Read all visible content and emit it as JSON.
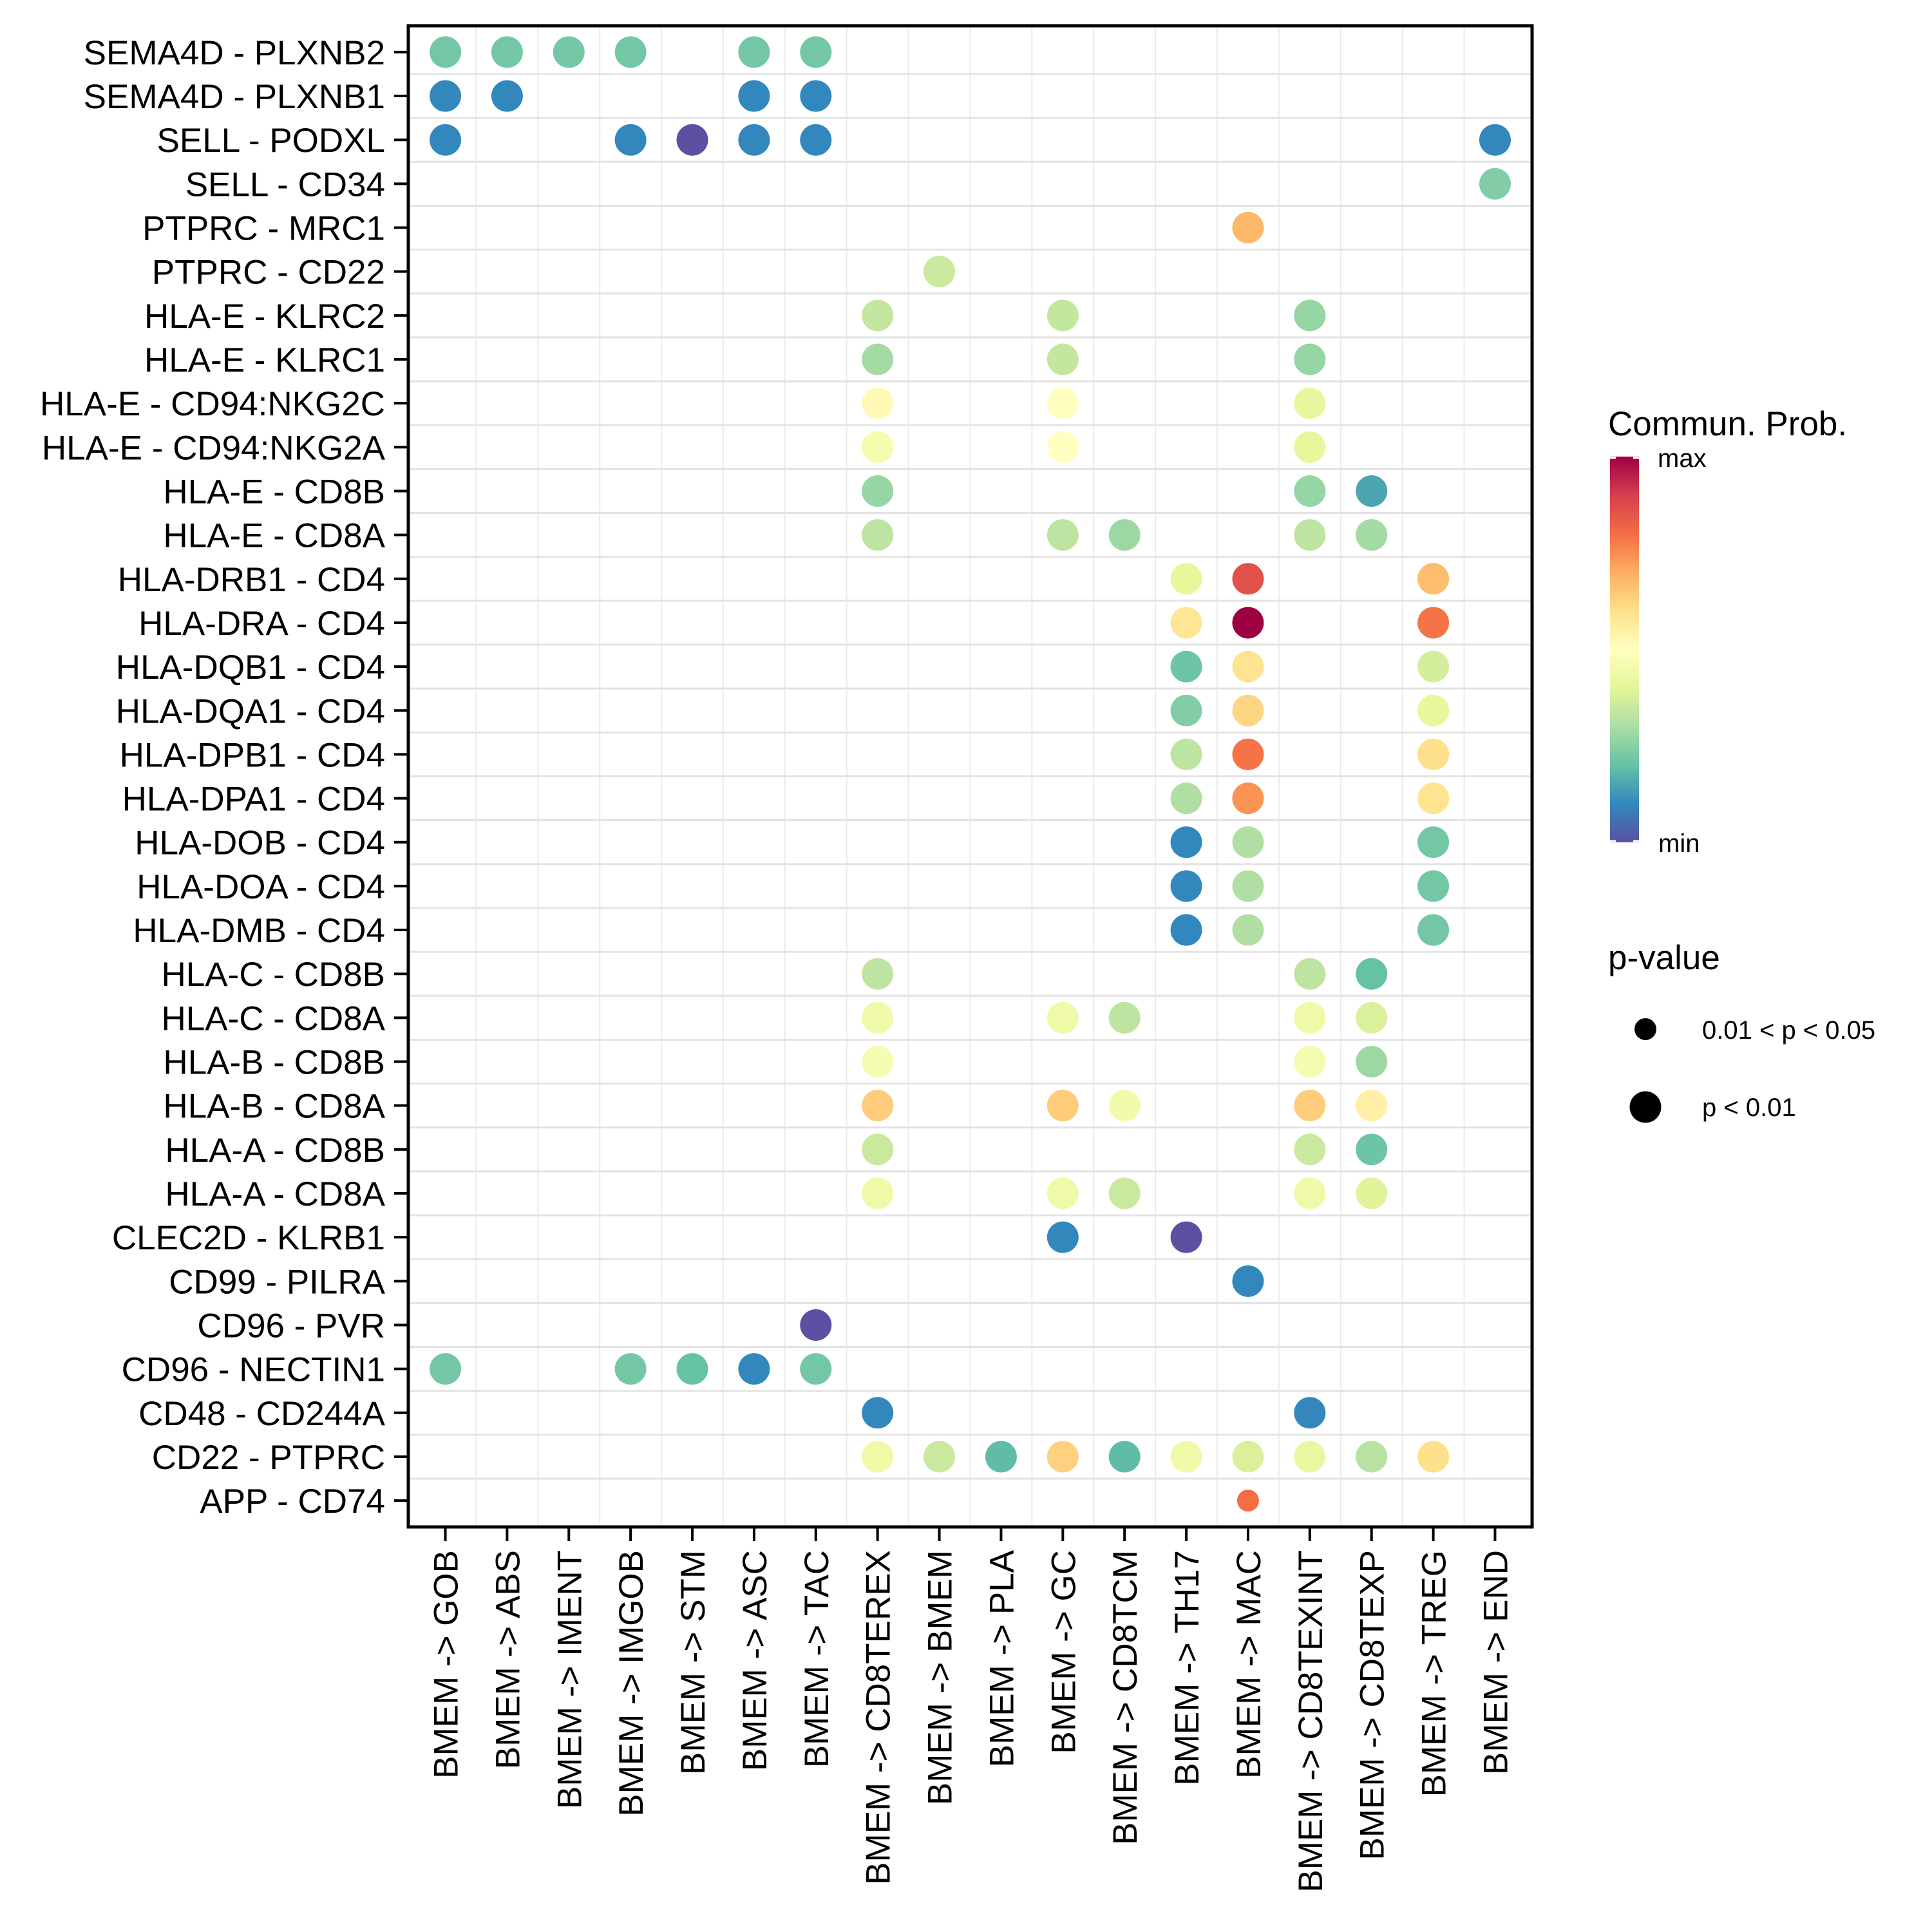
{
  "chart_data": {
    "type": "scatter",
    "subtype": "dot-matrix",
    "title": "",
    "xlabel": "",
    "ylabel": "",
    "grid": true,
    "categories_x": [
      "BMEM -> GOB",
      "BMEM -> ABS",
      "BMEM -> IMENT",
      "BMEM -> IMGOB",
      "BMEM -> STM",
      "BMEM -> ASC",
      "BMEM -> TAC",
      "BMEM -> CD8TEREX",
      "BMEM -> BMEM",
      "BMEM -> PLA",
      "BMEM -> GC",
      "BMEM -> CD8TCM",
      "BMEM -> TH17",
      "BMEM -> MAC",
      "BMEM -> CD8TEXINT",
      "BMEM -> CD8TEXP",
      "BMEM -> TREG",
      "BMEM -> END"
    ],
    "categories_y": [
      "SEMA4D - PLXNB2",
      "SEMA4D - PLXNB1",
      "SELL - PODXL",
      "SELL - CD34",
      "PTPRC - MRC1",
      "PTPRC - CD22",
      "HLA-E - KLRC2",
      "HLA-E - KLRC1",
      "HLA-E - CD94:NKG2C",
      "HLA-E - CD94:NKG2A",
      "HLA-E - CD8B",
      "HLA-E - CD8A",
      "HLA-DRB1 - CD4",
      "HLA-DRA - CD4",
      "HLA-DQB1 - CD4",
      "HLA-DQA1 - CD4",
      "HLA-DPB1 - CD4",
      "HLA-DPA1 - CD4",
      "HLA-DOB - CD4",
      "HLA-DOA - CD4",
      "HLA-DMB - CD4",
      "HLA-C - CD8B",
      "HLA-C - CD8A",
      "HLA-B - CD8B",
      "HLA-B - CD8A",
      "HLA-A - CD8B",
      "HLA-A - CD8A",
      "CLEC2D - KLRB1",
      "CD99 - PILRA",
      "CD96 - PVR",
      "CD96 - NECTIN1",
      "CD48 - CD244A",
      "CD22 - PTPRC",
      "APP - CD74"
    ],
    "value_note": "prob = relative communication probability on the color scale (0 = min, 1 = max); pval = p-value bin",
    "points": [
      {
        "y": "SEMA4D - PLXNB2",
        "x": "BMEM -> GOB",
        "prob": 0.22,
        "pval": "p < 0.01"
      },
      {
        "y": "SEMA4D - PLXNB2",
        "x": "BMEM -> ABS",
        "prob": 0.22,
        "pval": "p < 0.01"
      },
      {
        "y": "SEMA4D - PLXNB2",
        "x": "BMEM -> IMENT",
        "prob": 0.22,
        "pval": "p < 0.01"
      },
      {
        "y": "SEMA4D - PLXNB2",
        "x": "BMEM -> IMGOB",
        "prob": 0.22,
        "pval": "p < 0.01"
      },
      {
        "y": "SEMA4D - PLXNB2",
        "x": "BMEM -> ASC",
        "prob": 0.22,
        "pval": "p < 0.01"
      },
      {
        "y": "SEMA4D - PLXNB2",
        "x": "BMEM -> TAC",
        "prob": 0.22,
        "pval": "p < 0.01"
      },
      {
        "y": "SEMA4D - PLXNB1",
        "x": "BMEM -> GOB",
        "prob": 0.1,
        "pval": "p < 0.01"
      },
      {
        "y": "SEMA4D - PLXNB1",
        "x": "BMEM -> ABS",
        "prob": 0.1,
        "pval": "p < 0.01"
      },
      {
        "y": "SEMA4D - PLXNB1",
        "x": "BMEM -> ASC",
        "prob": 0.1,
        "pval": "p < 0.01"
      },
      {
        "y": "SEMA4D - PLXNB1",
        "x": "BMEM -> TAC",
        "prob": 0.1,
        "pval": "p < 0.01"
      },
      {
        "y": "SELL - PODXL",
        "x": "BMEM -> GOB",
        "prob": 0.1,
        "pval": "p < 0.01"
      },
      {
        "y": "SELL - PODXL",
        "x": "BMEM -> IMGOB",
        "prob": 0.1,
        "pval": "p < 0.01"
      },
      {
        "y": "SELL - PODXL",
        "x": "BMEM -> STM",
        "prob": 0.0,
        "pval": "p < 0.01"
      },
      {
        "y": "SELL - PODXL",
        "x": "BMEM -> ASC",
        "prob": 0.1,
        "pval": "p < 0.01"
      },
      {
        "y": "SELL - PODXL",
        "x": "BMEM -> TAC",
        "prob": 0.1,
        "pval": "p < 0.01"
      },
      {
        "y": "SELL - PODXL",
        "x": "BMEM -> END",
        "prob": 0.1,
        "pval": "p < 0.01"
      },
      {
        "y": "SELL - CD34",
        "x": "BMEM -> END",
        "prob": 0.24,
        "pval": "p < 0.01"
      },
      {
        "y": "PTPRC - MRC1",
        "x": "BMEM -> MAC",
        "prob": 0.68,
        "pval": "p < 0.01"
      },
      {
        "y": "PTPRC - CD22",
        "x": "BMEM -> BMEM",
        "prob": 0.35,
        "pval": "p < 0.01"
      },
      {
        "y": "HLA-E - KLRC2",
        "x": "BMEM -> CD8TEREX",
        "prob": 0.34,
        "pval": "p < 0.01"
      },
      {
        "y": "HLA-E - KLRC2",
        "x": "BMEM -> GC",
        "prob": 0.34,
        "pval": "p < 0.01"
      },
      {
        "y": "HLA-E - KLRC2",
        "x": "BMEM -> CD8TEXINT",
        "prob": 0.27,
        "pval": "p < 0.01"
      },
      {
        "y": "HLA-E - KLRC1",
        "x": "BMEM -> CD8TEREX",
        "prob": 0.29,
        "pval": "p < 0.01"
      },
      {
        "y": "HLA-E - KLRC1",
        "x": "BMEM -> GC",
        "prob": 0.34,
        "pval": "p < 0.01"
      },
      {
        "y": "HLA-E - KLRC1",
        "x": "BMEM -> CD8TEXINT",
        "prob": 0.27,
        "pval": "p < 0.01"
      },
      {
        "y": "HLA-E - CD94:NKG2C",
        "x": "BMEM -> CD8TEREX",
        "prob": 0.52,
        "pval": "p < 0.01"
      },
      {
        "y": "HLA-E - CD94:NKG2C",
        "x": "BMEM -> GC",
        "prob": 0.5,
        "pval": "p < 0.01"
      },
      {
        "y": "HLA-E - CD94:NKG2C",
        "x": "BMEM -> CD8TEXINT",
        "prob": 0.41,
        "pval": "p < 0.01"
      },
      {
        "y": "HLA-E - CD94:NKG2A",
        "x": "BMEM -> CD8TEREX",
        "prob": 0.46,
        "pval": "p < 0.01"
      },
      {
        "y": "HLA-E - CD94:NKG2A",
        "x": "BMEM -> GC",
        "prob": 0.5,
        "pval": "p < 0.01"
      },
      {
        "y": "HLA-E - CD94:NKG2A",
        "x": "BMEM -> CD8TEXINT",
        "prob": 0.41,
        "pval": "p < 0.01"
      },
      {
        "y": "HLA-E - CD8B",
        "x": "BMEM -> CD8TEREX",
        "prob": 0.27,
        "pval": "p < 0.01"
      },
      {
        "y": "HLA-E - CD8B",
        "x": "BMEM -> CD8TEXINT",
        "prob": 0.27,
        "pval": "p < 0.01"
      },
      {
        "y": "HLA-E - CD8B",
        "x": "BMEM -> CD8TEXP",
        "prob": 0.15,
        "pval": "p < 0.01"
      },
      {
        "y": "HLA-E - CD8A",
        "x": "BMEM -> CD8TEREX",
        "prob": 0.33,
        "pval": "p < 0.01"
      },
      {
        "y": "HLA-E - CD8A",
        "x": "BMEM -> GC",
        "prob": 0.33,
        "pval": "p < 0.01"
      },
      {
        "y": "HLA-E - CD8A",
        "x": "BMEM -> CD8TCM",
        "prob": 0.28,
        "pval": "p < 0.01"
      },
      {
        "y": "HLA-E - CD8A",
        "x": "BMEM -> CD8TEXINT",
        "prob": 0.33,
        "pval": "p < 0.01"
      },
      {
        "y": "HLA-E - CD8A",
        "x": "BMEM -> CD8TEXP",
        "prob": 0.29,
        "pval": "p < 0.01"
      },
      {
        "y": "HLA-DRB1 - CD4",
        "x": "BMEM -> TH17",
        "prob": 0.41,
        "pval": "p < 0.01"
      },
      {
        "y": "HLA-DRB1 - CD4",
        "x": "BMEM -> MAC",
        "prob": 0.86,
        "pval": "p < 0.01"
      },
      {
        "y": "HLA-DRB1 - CD4",
        "x": "BMEM -> TREG",
        "prob": 0.67,
        "pval": "p < 0.01"
      },
      {
        "y": "HLA-DRA - CD4",
        "x": "BMEM -> TH17",
        "prob": 0.58,
        "pval": "p < 0.01"
      },
      {
        "y": "HLA-DRA - CD4",
        "x": "BMEM -> MAC",
        "prob": 1.0,
        "pval": "p < 0.01"
      },
      {
        "y": "HLA-DRA - CD4",
        "x": "BMEM -> TREG",
        "prob": 0.79,
        "pval": "p < 0.01"
      },
      {
        "y": "HLA-DQB1 - CD4",
        "x": "BMEM -> TH17",
        "prob": 0.21,
        "pval": "p < 0.01"
      },
      {
        "y": "HLA-DQB1 - CD4",
        "x": "BMEM -> MAC",
        "prob": 0.59,
        "pval": "p < 0.01"
      },
      {
        "y": "HLA-DQB1 - CD4",
        "x": "BMEM -> TREG",
        "prob": 0.37,
        "pval": "p < 0.01"
      },
      {
        "y": "HLA-DQA1 - CD4",
        "x": "BMEM -> TH17",
        "prob": 0.24,
        "pval": "p < 0.01"
      },
      {
        "y": "HLA-DQA1 - CD4",
        "x": "BMEM -> MAC",
        "prob": 0.62,
        "pval": "p < 0.01"
      },
      {
        "y": "HLA-DQA1 - CD4",
        "x": "BMEM -> TREG",
        "prob": 0.41,
        "pval": "p < 0.01"
      },
      {
        "y": "HLA-DPB1 - CD4",
        "x": "BMEM -> TH17",
        "prob": 0.33,
        "pval": "p < 0.01"
      },
      {
        "y": "HLA-DPB1 - CD4",
        "x": "BMEM -> MAC",
        "prob": 0.79,
        "pval": "p < 0.01"
      },
      {
        "y": "HLA-DPB1 - CD4",
        "x": "BMEM -> TREG",
        "prob": 0.6,
        "pval": "p < 0.01"
      },
      {
        "y": "HLA-DPA1 - CD4",
        "x": "BMEM -> TH17",
        "prob": 0.31,
        "pval": "p < 0.01"
      },
      {
        "y": "HLA-DPA1 - CD4",
        "x": "BMEM -> MAC",
        "prob": 0.74,
        "pval": "p < 0.01"
      },
      {
        "y": "HLA-DPA1 - CD4",
        "x": "BMEM -> TREG",
        "prob": 0.59,
        "pval": "p < 0.01"
      },
      {
        "y": "HLA-DOB - CD4",
        "x": "BMEM -> TH17",
        "prob": 0.1,
        "pval": "p < 0.01"
      },
      {
        "y": "HLA-DOB - CD4",
        "x": "BMEM -> MAC",
        "prob": 0.31,
        "pval": "p < 0.01"
      },
      {
        "y": "HLA-DOB - CD4",
        "x": "BMEM -> TREG",
        "prob": 0.22,
        "pval": "p < 0.01"
      },
      {
        "y": "HLA-DOA - CD4",
        "x": "BMEM -> TH17",
        "prob": 0.1,
        "pval": "p < 0.01"
      },
      {
        "y": "HLA-DOA - CD4",
        "x": "BMEM -> MAC",
        "prob": 0.31,
        "pval": "p < 0.01"
      },
      {
        "y": "HLA-DOA - CD4",
        "x": "BMEM -> TREG",
        "prob": 0.22,
        "pval": "p < 0.01"
      },
      {
        "y": "HLA-DMB - CD4",
        "x": "BMEM -> TH17",
        "prob": 0.1,
        "pval": "p < 0.01"
      },
      {
        "y": "HLA-DMB - CD4",
        "x": "BMEM -> MAC",
        "prob": 0.31,
        "pval": "p < 0.01"
      },
      {
        "y": "HLA-DMB - CD4",
        "x": "BMEM -> TREG",
        "prob": 0.22,
        "pval": "p < 0.01"
      },
      {
        "y": "HLA-C - CD8B",
        "x": "BMEM -> CD8TEREX",
        "prob": 0.33,
        "pval": "p < 0.01"
      },
      {
        "y": "HLA-C - CD8B",
        "x": "BMEM -> CD8TEXINT",
        "prob": 0.33,
        "pval": "p < 0.01"
      },
      {
        "y": "HLA-C - CD8B",
        "x": "BMEM -> CD8TEXP",
        "prob": 0.2,
        "pval": "p < 0.01"
      },
      {
        "y": "HLA-C - CD8A",
        "x": "BMEM -> CD8TEREX",
        "prob": 0.44,
        "pval": "p < 0.01"
      },
      {
        "y": "HLA-C - CD8A",
        "x": "BMEM -> GC",
        "prob": 0.44,
        "pval": "p < 0.01"
      },
      {
        "y": "HLA-C - CD8A",
        "x": "BMEM -> CD8TCM",
        "prob": 0.33,
        "pval": "p < 0.01"
      },
      {
        "y": "HLA-C - CD8A",
        "x": "BMEM -> CD8TEXINT",
        "prob": 0.44,
        "pval": "p < 0.01"
      },
      {
        "y": "HLA-C - CD8A",
        "x": "BMEM -> CD8TEXP",
        "prob": 0.38,
        "pval": "p < 0.01"
      },
      {
        "y": "HLA-B - CD8B",
        "x": "BMEM -> CD8TEREX",
        "prob": 0.46,
        "pval": "p < 0.01"
      },
      {
        "y": "HLA-B - CD8B",
        "x": "BMEM -> CD8TEXINT",
        "prob": 0.46,
        "pval": "p < 0.01"
      },
      {
        "y": "HLA-B - CD8B",
        "x": "BMEM -> CD8TEXP",
        "prob": 0.28,
        "pval": "p < 0.01"
      },
      {
        "y": "HLA-B - CD8A",
        "x": "BMEM -> CD8TEREX",
        "prob": 0.64,
        "pval": "p < 0.01"
      },
      {
        "y": "HLA-B - CD8A",
        "x": "BMEM -> GC",
        "prob": 0.64,
        "pval": "p < 0.01"
      },
      {
        "y": "HLA-B - CD8A",
        "x": "BMEM -> CD8TCM",
        "prob": 0.45,
        "pval": "p < 0.01"
      },
      {
        "y": "HLA-B - CD8A",
        "x": "BMEM -> CD8TEXINT",
        "prob": 0.64,
        "pval": "p < 0.01"
      },
      {
        "y": "HLA-B - CD8A",
        "x": "BMEM -> CD8TEXP",
        "prob": 0.55,
        "pval": "p < 0.01"
      },
      {
        "y": "HLA-A - CD8B",
        "x": "BMEM -> CD8TEREX",
        "prob": 0.35,
        "pval": "p < 0.01"
      },
      {
        "y": "HLA-A - CD8B",
        "x": "BMEM -> CD8TEXINT",
        "prob": 0.35,
        "pval": "p < 0.01"
      },
      {
        "y": "HLA-A - CD8B",
        "x": "BMEM -> CD8TEXP",
        "prob": 0.21,
        "pval": "p < 0.01"
      },
      {
        "y": "HLA-A - CD8A",
        "x": "BMEM -> CD8TEREX",
        "prob": 0.44,
        "pval": "p < 0.01"
      },
      {
        "y": "HLA-A - CD8A",
        "x": "BMEM -> GC",
        "prob": 0.44,
        "pval": "p < 0.01"
      },
      {
        "y": "HLA-A - CD8A",
        "x": "BMEM -> CD8TCM",
        "prob": 0.35,
        "pval": "p < 0.01"
      },
      {
        "y": "HLA-A - CD8A",
        "x": "BMEM -> CD8TEXINT",
        "prob": 0.44,
        "pval": "p < 0.01"
      },
      {
        "y": "HLA-A - CD8A",
        "x": "BMEM -> CD8TEXP",
        "prob": 0.39,
        "pval": "p < 0.01"
      },
      {
        "y": "CLEC2D - KLRB1",
        "x": "BMEM -> GC",
        "prob": 0.1,
        "pval": "p < 0.01"
      },
      {
        "y": "CLEC2D - KLRB1",
        "x": "BMEM -> TH17",
        "prob": 0.0,
        "pval": "p < 0.01"
      },
      {
        "y": "CD99 - PILRA",
        "x": "BMEM -> MAC",
        "prob": 0.1,
        "pval": "p < 0.01"
      },
      {
        "y": "CD96 - PVR",
        "x": "BMEM -> TAC",
        "prob": 0.0,
        "pval": "p < 0.01"
      },
      {
        "y": "CD96 - NECTIN1",
        "x": "BMEM -> GOB",
        "prob": 0.22,
        "pval": "p < 0.01"
      },
      {
        "y": "CD96 - NECTIN1",
        "x": "BMEM -> IMGOB",
        "prob": 0.22,
        "pval": "p < 0.01"
      },
      {
        "y": "CD96 - NECTIN1",
        "x": "BMEM -> STM",
        "prob": 0.2,
        "pval": "p < 0.01"
      },
      {
        "y": "CD96 - NECTIN1",
        "x": "BMEM -> ASC",
        "prob": 0.1,
        "pval": "p < 0.01"
      },
      {
        "y": "CD96 - NECTIN1",
        "x": "BMEM -> TAC",
        "prob": 0.22,
        "pval": "p < 0.01"
      },
      {
        "y": "CD48 - CD244A",
        "x": "BMEM -> CD8TEREX",
        "prob": 0.1,
        "pval": "p < 0.01"
      },
      {
        "y": "CD48 - CD244A",
        "x": "BMEM -> CD8TEXINT",
        "prob": 0.1,
        "pval": "p < 0.01"
      },
      {
        "y": "CD22 - PTPRC",
        "x": "BMEM -> CD8TEREX",
        "prob": 0.44,
        "pval": "p < 0.01"
      },
      {
        "y": "CD22 - PTPRC",
        "x": "BMEM -> BMEM",
        "prob": 0.35,
        "pval": "p < 0.01"
      },
      {
        "y": "CD22 - PTPRC",
        "x": "BMEM -> PLA",
        "prob": 0.19,
        "pval": "p < 0.01"
      },
      {
        "y": "CD22 - PTPRC",
        "x": "BMEM -> GC",
        "prob": 0.63,
        "pval": "p < 0.01"
      },
      {
        "y": "CD22 - PTPRC",
        "x": "BMEM -> CD8TCM",
        "prob": 0.19,
        "pval": "p < 0.01"
      },
      {
        "y": "CD22 - PTPRC",
        "x": "BMEM -> TH17",
        "prob": 0.44,
        "pval": "p < 0.01"
      },
      {
        "y": "CD22 - PTPRC",
        "x": "BMEM -> MAC",
        "prob": 0.38,
        "pval": "p < 0.01"
      },
      {
        "y": "CD22 - PTPRC",
        "x": "BMEM -> CD8TEXINT",
        "prob": 0.42,
        "pval": "p < 0.01"
      },
      {
        "y": "CD22 - PTPRC",
        "x": "BMEM -> CD8TEXP",
        "prob": 0.32,
        "pval": "p < 0.01"
      },
      {
        "y": "CD22 - PTPRC",
        "x": "BMEM -> TREG",
        "prob": 0.6,
        "pval": "p < 0.01"
      },
      {
        "y": "APP - CD74",
        "x": "BMEM -> MAC",
        "prob": 0.8,
        "pval": "0.01 < p < 0.05"
      }
    ],
    "color_scale": {
      "title": "Commun. Prob.",
      "max_label": "max",
      "min_label": "min",
      "palette": [
        "#5E4FA2",
        "#3288BD",
        "#66C2A5",
        "#ABDDA4",
        "#E6F598",
        "#FFFFBF",
        "#FEE08B",
        "#FDAE61",
        "#F46D43",
        "#D53E4F",
        "#9E0142"
      ]
    },
    "size_legend": {
      "title": "p-value",
      "items": [
        {
          "label": "0.01 < p < 0.05",
          "size": "small"
        },
        {
          "label": "p < 0.01",
          "size": "large"
        }
      ]
    },
    "legend_position": "right"
  }
}
